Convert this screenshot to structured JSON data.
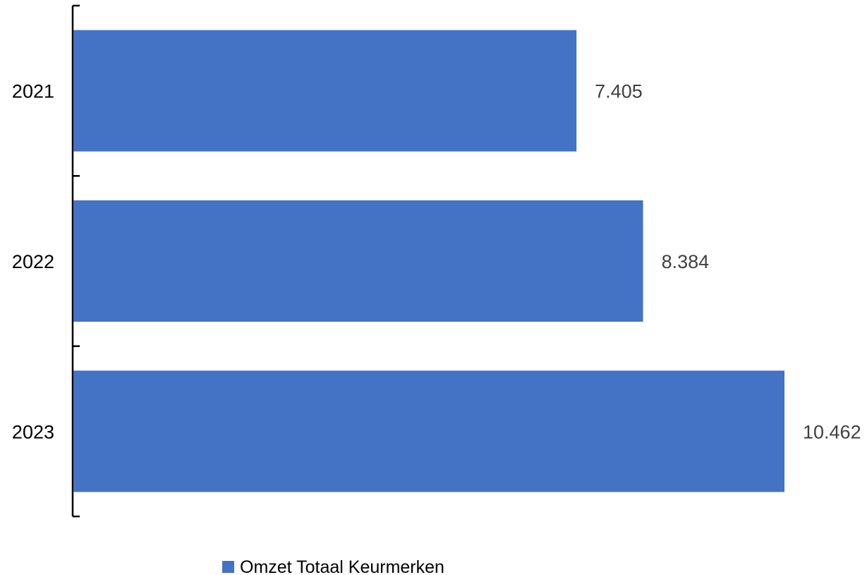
{
  "chart_data": {
    "type": "bar",
    "orientation": "horizontal",
    "categories": [
      "2021",
      "2022",
      "2023"
    ],
    "series": [
      {
        "name": "Omzet Totaal Keurmerken",
        "values": [
          7405,
          8384,
          10462
        ],
        "data_labels": [
          "7.405",
          "8.384",
          "10.462"
        ],
        "color": "#4472C4"
      }
    ],
    "title": "",
    "xlabel": "",
    "ylabel": "",
    "xlim": [
      0,
      10462
    ],
    "grid": false,
    "value_axis_visible": false,
    "legend": {
      "position": "bottom",
      "entries": [
        "Omzet Totaal Keurmerken"
      ]
    }
  }
}
